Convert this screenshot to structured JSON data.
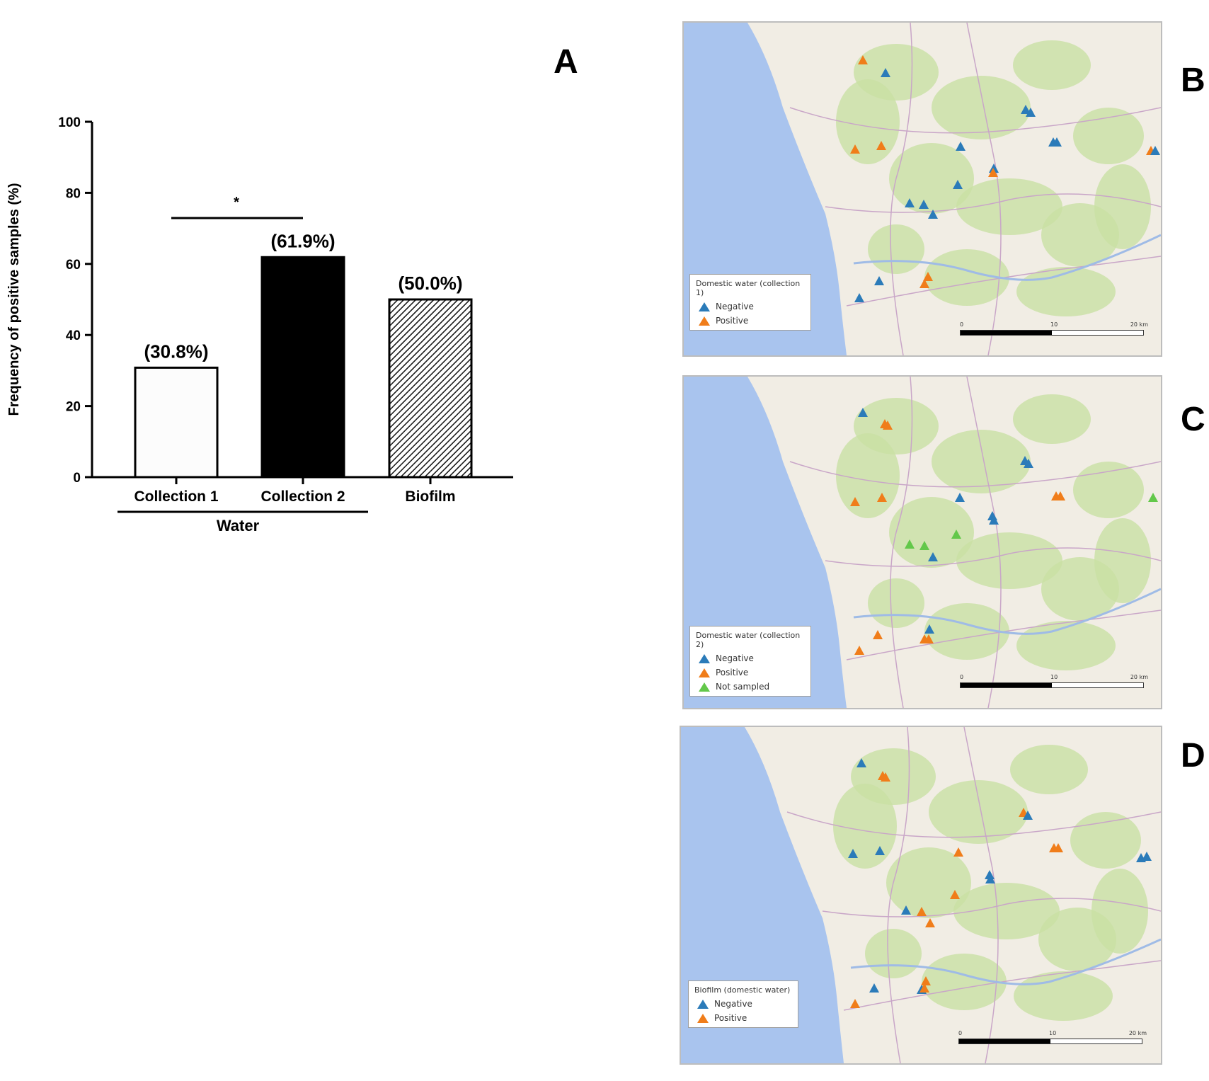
{
  "panel_labels": {
    "a": "A",
    "b": "B",
    "c": "C",
    "d": "D"
  },
  "colors": {
    "negative": "#2b7bb9",
    "positive": "#f07d1a",
    "not_sampled": "#63c84a",
    "sea": "#a9c4ee",
    "land": "#f1ede4",
    "green": "#c9e0a4"
  },
  "chart_data": {
    "type": "bar",
    "categories": [
      "Collection 1",
      "Collection 2",
      "Biofilm"
    ],
    "values": [
      30.8,
      61.9,
      50.0
    ],
    "data_labels": [
      "(30.8%)",
      "(61.9%)",
      "(50.0%)"
    ],
    "fills": [
      "white",
      "black",
      "hatched"
    ],
    "title": "",
    "xlabel": "",
    "ylabel": "Frequency of positive samples (%)",
    "ylim": [
      0,
      100
    ],
    "yticks": [
      0,
      20,
      40,
      60,
      80,
      100
    ],
    "group_label": "Water",
    "group_categories": [
      "Collection 1",
      "Collection 2"
    ],
    "significance": {
      "between": [
        "Collection 1",
        "Collection 2"
      ],
      "symbol": "*"
    },
    "grid": false
  },
  "maps": [
    {
      "id": "B",
      "legend_title": "Domestic water (collection 1)",
      "legend_items": [
        {
          "label": "Negative",
          "color": "#2b7bb9"
        },
        {
          "label": "Positive",
          "color": "#f07d1a"
        }
      ],
      "scale_labels": [
        "0",
        "10",
        "20 km"
      ]
    },
    {
      "id": "C",
      "legend_title": "Domestic water (collection 2)",
      "legend_items": [
        {
          "label": "Negative",
          "color": "#2b7bb9"
        },
        {
          "label": "Positive",
          "color": "#f07d1a"
        },
        {
          "label": "Not sampled",
          "color": "#63c84a"
        }
      ],
      "scale_labels": [
        "0",
        "10",
        "20 km"
      ]
    },
    {
      "id": "D",
      "legend_title": "Biofilm   (domestic water)",
      "legend_items": [
        {
          "label": "Negative",
          "color": "#2b7bb9"
        },
        {
          "label": "Positive",
          "color": "#f07d1a"
        }
      ],
      "scale_labels": [
        "0",
        "10",
        "20 km"
      ]
    }
  ]
}
